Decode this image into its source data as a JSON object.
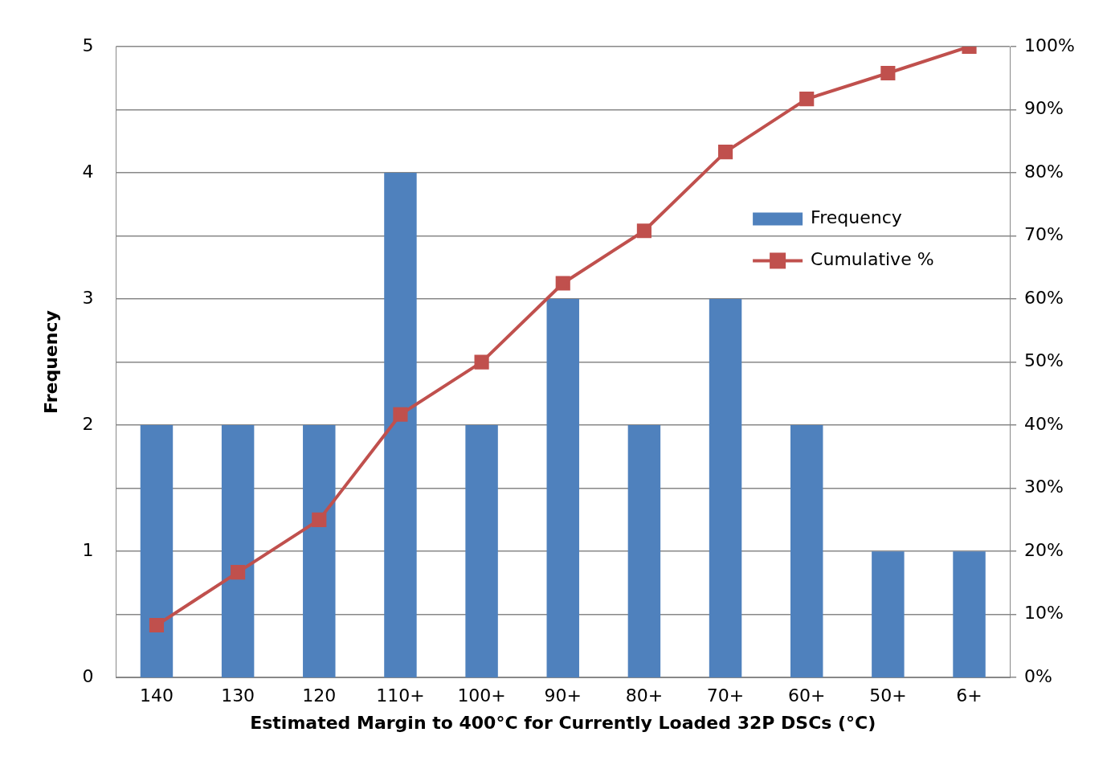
{
  "chart_data": {
    "type": "bar",
    "xlabel": "Estimated Margin to 400°C for Currently Loaded 32P DSCs (°C)",
    "ylabel": "Frequency",
    "categories": [
      "140",
      "130",
      "120",
      "110+",
      "100+",
      "90+",
      "80+",
      "70+",
      "60+",
      "50+",
      "6+"
    ],
    "series": [
      {
        "name": "Frequency",
        "color": "#4f81bd",
        "values": [
          2,
          2,
          2,
          4,
          2,
          3,
          2,
          3,
          2,
          1,
          1
        ]
      },
      {
        "name": "Cumulative %",
        "type": "line",
        "axis": "y2",
        "color": "#c0504d",
        "marker": "square",
        "values": [
          8.3,
          16.7,
          25,
          41.7,
          50,
          62.5,
          70.8,
          83.3,
          91.7,
          95.8,
          100
        ]
      }
    ],
    "ylim": [
      0,
      5
    ],
    "yticks": [
      0,
      1,
      2,
      3,
      4,
      5
    ],
    "y2lim": [
      0,
      100
    ],
    "y2ticks": [
      {
        "value": 0,
        "label": "0%"
      },
      {
        "value": 10,
        "label": "10%"
      },
      {
        "value": 20,
        "label": "20%"
      },
      {
        "value": 30,
        "label": "30%"
      },
      {
        "value": 40,
        "label": "40%"
      },
      {
        "value": 50,
        "label": "50%"
      },
      {
        "value": 60,
        "label": "60%"
      },
      {
        "value": 70,
        "label": "70%"
      },
      {
        "value": 80,
        "label": "80%"
      },
      {
        "value": 90,
        "label": "90%"
      },
      {
        "value": 100,
        "label": "100%"
      }
    ],
    "grid": "y",
    "legend": "right"
  }
}
